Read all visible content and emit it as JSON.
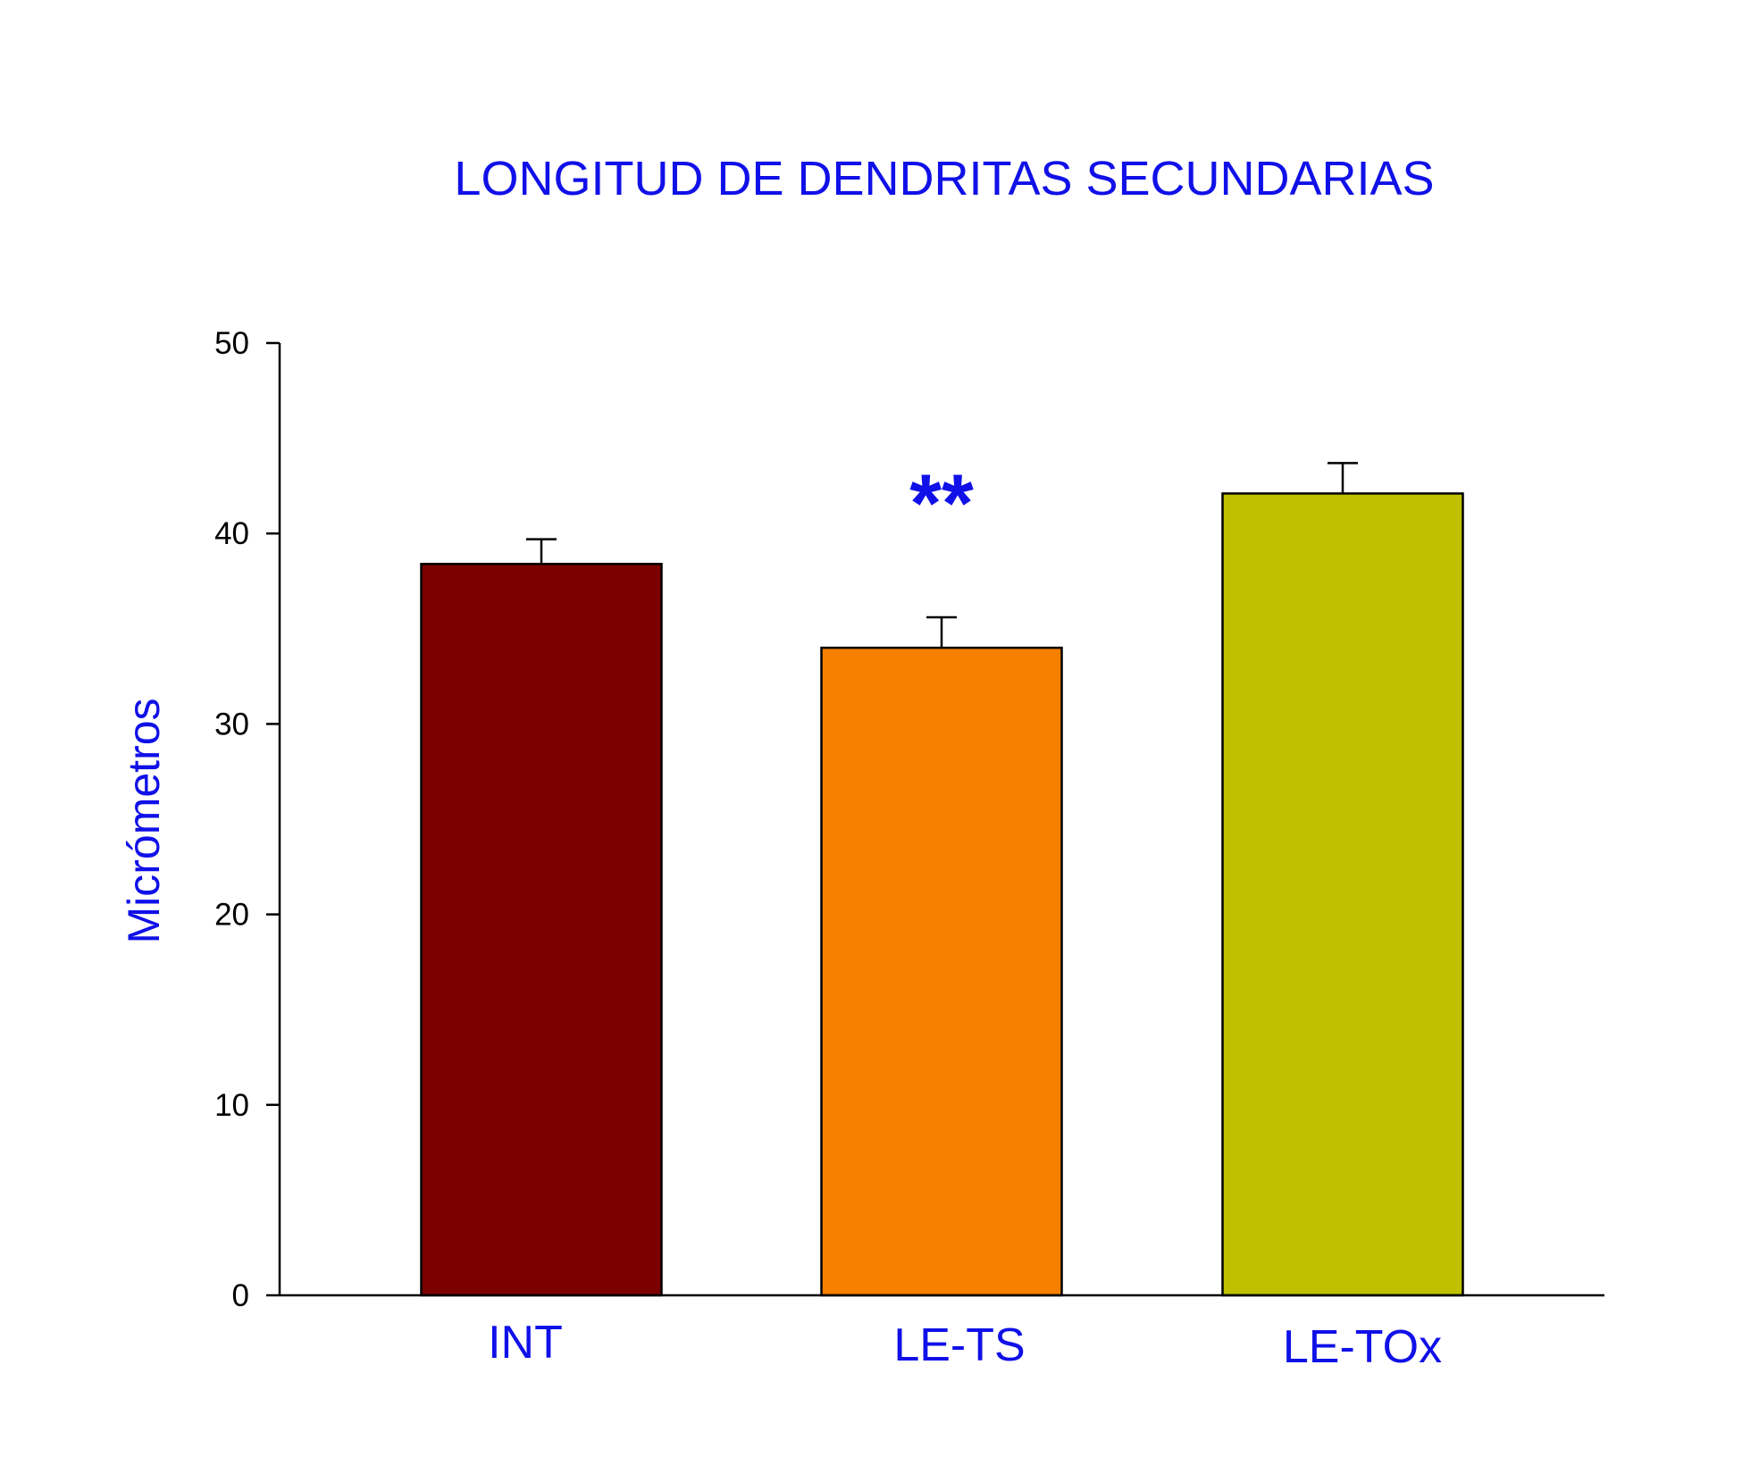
{
  "chart_data": {
    "type": "bar",
    "title": "LONGITUD DE DENDRITAS SECUNDARIAS",
    "xlabel": "",
    "ylabel": "Micrómetros",
    "ylim": [
      0,
      50
    ],
    "yticks": [
      0,
      10,
      20,
      30,
      40,
      50
    ],
    "categories": [
      "INT",
      "LE-TS",
      "LE-TOx"
    ],
    "values": [
      38.4,
      34.0,
      42.1
    ],
    "errors": [
      1.3,
      1.6,
      1.6
    ],
    "colors": [
      "#7b0000",
      "#f88000",
      "#c0c000"
    ],
    "annotations": [
      {
        "category": "LE-TS",
        "text": "**"
      }
    ],
    "grid": false,
    "legend": "none"
  }
}
